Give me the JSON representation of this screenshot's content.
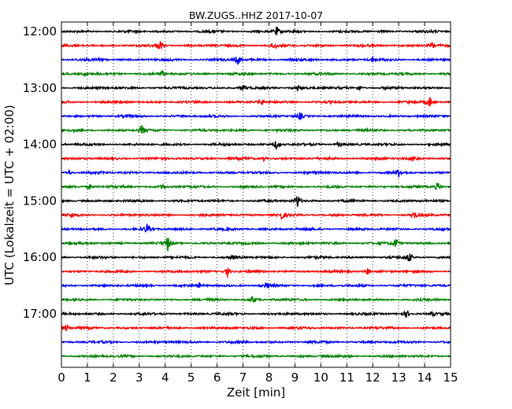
{
  "chart_data": {
    "type": "line",
    "title": "BW.ZUGS..HHZ 2017-10-07",
    "xlabel": "Zeit  [min]",
    "ylabel": "UTC (Lokalzeit = UTC + 02:00)",
    "xlim": [
      0,
      15
    ],
    "x_ticks": [
      0,
      1,
      2,
      3,
      4,
      5,
      6,
      7,
      8,
      9,
      10,
      11,
      12,
      13,
      14,
      15
    ],
    "y_tick_labels": [
      "12:00",
      "13:00",
      "14:00",
      "15:00",
      "16:00",
      "17:00"
    ],
    "grid": "vertical dotted",
    "legend": "none",
    "color_cycle": [
      "#000000",
      "#ff0000",
      "#0000ff",
      "#008000"
    ],
    "traces": [
      {
        "start": "12:00",
        "spikes": [
          [
            8.3,
            0.9
          ]
        ]
      },
      {
        "start": "12:15",
        "spikes": [
          [
            3.8,
            1.0
          ],
          [
            8.2,
            0.8
          ],
          [
            14.3,
            0.6
          ]
        ]
      },
      {
        "start": "12:30",
        "spikes": [
          [
            1.5,
            0.7
          ],
          [
            6.8,
            1.0
          ],
          [
            12.0,
            0.5
          ]
        ]
      },
      {
        "start": "12:45",
        "spikes": [
          [
            3.9,
            0.5
          ],
          [
            0.9,
            0.4
          ]
        ]
      },
      {
        "start": "13:00",
        "spikes": [
          [
            7.0,
            0.6
          ],
          [
            9.1,
            0.6
          ],
          [
            11.5,
            0.5
          ]
        ]
      },
      {
        "start": "13:15",
        "spikes": [
          [
            7.7,
            0.7
          ],
          [
            14.2,
            1.1
          ]
        ]
      },
      {
        "start": "13:30",
        "spikes": [
          [
            9.2,
            0.7
          ]
        ]
      },
      {
        "start": "13:45",
        "spikes": [
          [
            3.1,
            1.0
          ]
        ]
      },
      {
        "start": "14:00",
        "spikes": [
          [
            8.3,
            1.0
          ],
          [
            10.7,
            0.5
          ]
        ]
      },
      {
        "start": "14:15",
        "spikes": [
          [
            13.6,
            0.5
          ],
          [
            7.8,
            0.4
          ]
        ]
      },
      {
        "start": "14:30",
        "spikes": [
          [
            0.3,
            0.5
          ],
          [
            13.0,
            0.7
          ]
        ]
      },
      {
        "start": "14:45",
        "spikes": [
          [
            1.1,
            0.5
          ],
          [
            14.5,
            1.0
          ],
          [
            3.9,
            0.4
          ]
        ]
      },
      {
        "start": "15:00",
        "spikes": [
          [
            9.1,
            1.4
          ]
        ]
      },
      {
        "start": "15:15",
        "spikes": [
          [
            8.5,
            0.8
          ],
          [
            13.6,
            0.7
          ],
          [
            0.4,
            0.4
          ]
        ]
      },
      {
        "start": "15:30",
        "spikes": [
          [
            3.3,
            0.9
          ],
          [
            9.5,
            0.5
          ]
        ]
      },
      {
        "start": "15:45",
        "spikes": [
          [
            4.1,
            1.4
          ],
          [
            12.9,
            1.0
          ]
        ]
      },
      {
        "start": "16:00",
        "spikes": [
          [
            13.4,
            1.0
          ],
          [
            6.6,
            0.4
          ]
        ]
      },
      {
        "start": "16:15",
        "spikes": [
          [
            6.4,
            1.1
          ],
          [
            11.8,
            0.6
          ]
        ]
      },
      {
        "start": "16:30",
        "spikes": [
          [
            7.9,
            0.6
          ],
          [
            5.3,
            0.4
          ]
        ]
      },
      {
        "start": "16:45",
        "spikes": [
          [
            7.4,
            0.7
          ]
        ]
      },
      {
        "start": "17:00",
        "spikes": [
          [
            13.3,
            0.7
          ],
          [
            14.3,
            0.4
          ]
        ]
      },
      {
        "start": "17:15",
        "spikes": [
          [
            0.2,
            0.6
          ]
        ]
      },
      {
        "start": "17:30",
        "spikes": []
      },
      {
        "start": "17:45",
        "spikes": []
      }
    ]
  }
}
